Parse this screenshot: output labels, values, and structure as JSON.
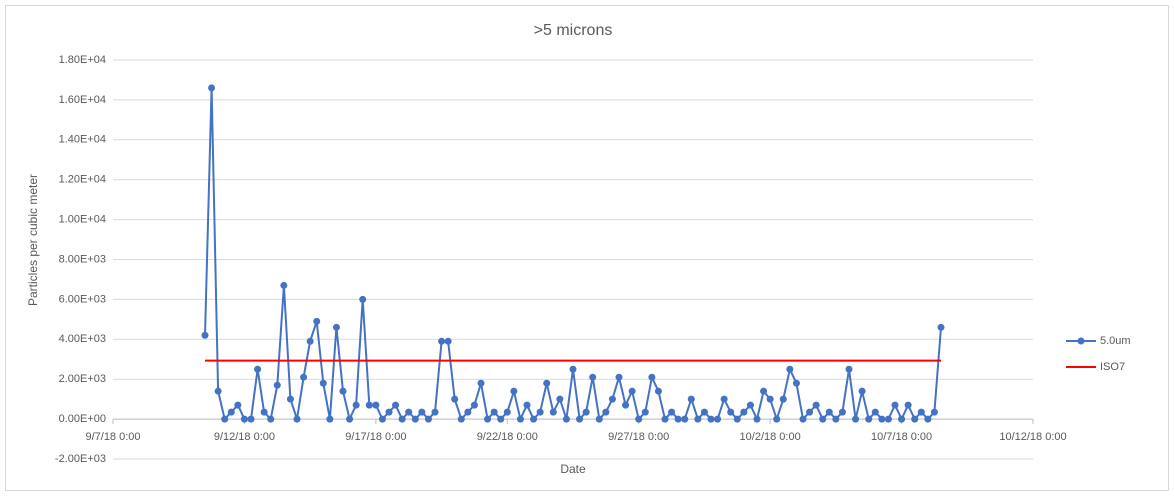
{
  "chart_data": {
    "type": "line",
    "title": ">5 microns",
    "x_label": "Date",
    "y_label": "Particles per cubic meter",
    "xlim": [
      "9/7/18 0:00",
      "10/12/18 0:00"
    ],
    "xticks": [
      "9/7/18 0:00",
      "9/12/18 0:00",
      "9/17/18 0:00",
      "9/22/18 0:00",
      "9/27/18 0:00",
      "10/2/18 0:00",
      "10/7/18 0:00",
      "10/12/18 0:00"
    ],
    "ylim": [
      -2000,
      18000
    ],
    "yticks": [
      {
        "value": -2000,
        "label": "-2.00E+03"
      },
      {
        "value": 0,
        "label": "0.00E+00"
      },
      {
        "value": 2000,
        "label": "2.00E+03"
      },
      {
        "value": 4000,
        "label": "4.00E+03"
      },
      {
        "value": 6000,
        "label": "6.00E+03"
      },
      {
        "value": 8000,
        "label": "8.00E+03"
      },
      {
        "value": 10000,
        "label": "1.00E+04"
      },
      {
        "value": 12000,
        "label": "1.20E+04"
      },
      {
        "value": 14000,
        "label": "1.40E+04"
      },
      {
        "value": 16000,
        "label": "1.60E+04"
      },
      {
        "value": 18000,
        "label": "1.80E+04"
      }
    ],
    "grid": true,
    "legend": "right",
    "series": [
      {
        "name": "5.0um",
        "color": "#4472c4",
        "markers": true,
        "x": [
          "9/10/18 12:00",
          "9/10/18 18:00",
          "9/11/18 0:00",
          "9/11/18 6:00",
          "9/11/18 12:00",
          "9/11/18 18:00",
          "9/12/18 0:00",
          "9/12/18 6:00",
          "9/12/18 12:00",
          "9/12/18 18:00",
          "9/13/18 0:00",
          "9/13/18 6:00",
          "9/13/18 12:00",
          "9/13/18 18:00",
          "9/14/18 0:00",
          "9/14/18 6:00",
          "9/14/18 12:00",
          "9/14/18 18:00",
          "9/15/18 0:00",
          "9/15/18 6:00",
          "9/15/18 12:00",
          "9/15/18 18:00",
          "9/16/18 0:00",
          "9/16/18 6:00",
          "9/16/18 12:00",
          "9/16/18 18:00",
          "9/17/18 0:00",
          "9/17/18 6:00",
          "9/17/18 12:00",
          "9/17/18 18:00",
          "9/18/18 0:00",
          "9/18/18 6:00",
          "9/18/18 12:00",
          "9/18/18 18:00",
          "9/19/18 0:00",
          "9/19/18 6:00",
          "9/19/18 12:00",
          "9/19/18 18:00",
          "9/20/18 0:00",
          "9/20/18 6:00",
          "9/20/18 12:00",
          "9/20/18 18:00",
          "9/21/18 0:00",
          "9/21/18 6:00",
          "9/21/18 12:00",
          "9/21/18 18:00",
          "9/22/18 0:00",
          "9/22/18 6:00",
          "9/22/18 12:00",
          "9/22/18 18:00",
          "9/23/18 0:00",
          "9/23/18 6:00",
          "9/23/18 12:00",
          "9/23/18 18:00",
          "9/24/18 0:00",
          "9/24/18 6:00",
          "9/24/18 12:00",
          "9/24/18 18:00",
          "9/25/18 0:00",
          "9/25/18 6:00",
          "9/25/18 12:00",
          "9/25/18 18:00",
          "9/26/18 0:00",
          "9/26/18 6:00",
          "9/26/18 12:00",
          "9/26/18 18:00",
          "9/27/18 0:00",
          "9/27/18 6:00",
          "9/27/18 12:00",
          "9/27/18 18:00",
          "9/28/18 0:00",
          "9/28/18 6:00",
          "9/28/18 12:00",
          "9/28/18 18:00",
          "9/29/18 0:00",
          "9/29/18 6:00",
          "9/29/18 12:00",
          "9/29/18 18:00",
          "9/30/18 0:00",
          "9/30/18 6:00",
          "9/30/18 12:00",
          "9/30/18 18:00",
          "10/1/18 0:00",
          "10/1/18 6:00",
          "10/1/18 12:00",
          "10/1/18 18:00",
          "10/2/18 0:00",
          "10/2/18 6:00",
          "10/2/18 12:00",
          "10/2/18 18:00",
          "10/3/18 0:00",
          "10/3/18 6:00",
          "10/3/18 12:00",
          "10/3/18 18:00",
          "10/4/18 0:00",
          "10/4/18 6:00",
          "10/4/18 12:00",
          "10/4/18 18:00",
          "10/5/18 0:00",
          "10/5/18 6:00",
          "10/5/18 12:00",
          "10/5/18 18:00",
          "10/6/18 0:00",
          "10/6/18 6:00",
          "10/6/18 12:00",
          "10/6/18 18:00",
          "10/7/18 0:00",
          "10/7/18 6:00",
          "10/7/18 12:00",
          "10/7/18 18:00",
          "10/8/18 0:00",
          "10/8/18 6:00",
          "10/8/18 12:00"
        ],
        "values": [
          4200,
          16600,
          1400,
          0,
          350,
          700,
          0,
          0,
          2500,
          350,
          0,
          1700,
          6700,
          1000,
          0,
          2100,
          3900,
          4900,
          1800,
          0,
          4600,
          1400,
          0,
          700,
          6000,
          700,
          700,
          0,
          350,
          700,
          0,
          350,
          0,
          350,
          0,
          350,
          3900,
          3900,
          1000,
          0,
          350,
          700,
          1800,
          0,
          350,
          0,
          350,
          1400,
          0,
          700,
          0,
          350,
          1800,
          350,
          1000,
          0,
          2500,
          0,
          350,
          2100,
          0,
          350,
          1000,
          2100,
          700,
          1400,
          0,
          350,
          2100,
          1400,
          0,
          350,
          0,
          0,
          1000,
          0,
          350,
          0,
          0,
          1000,
          350,
          0,
          350,
          700,
          0,
          1400,
          1000,
          0,
          1000,
          2500,
          1800,
          0,
          350,
          700,
          0,
          350,
          0,
          350,
          2500,
          0,
          1400,
          0,
          350,
          0,
          0,
          700,
          0,
          700,
          0,
          350,
          0,
          350,
          4600
        ]
      },
      {
        "name": "ISO7",
        "color": "#ff0000",
        "markers": false,
        "x": [
          "9/10/18 12:00",
          "10/8/18 12:00"
        ],
        "values": [
          2930,
          2930
        ]
      }
    ]
  }
}
